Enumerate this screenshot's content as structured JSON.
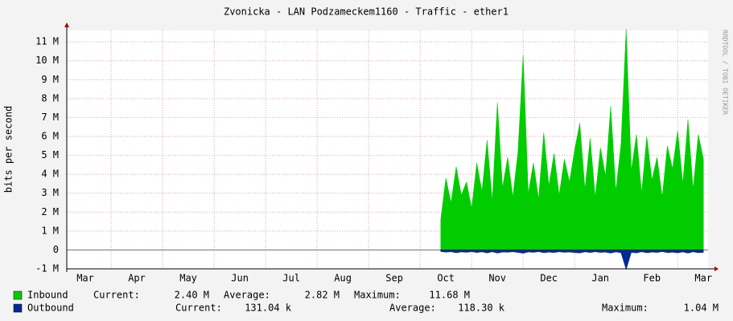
{
  "chart_data": {
    "type": "area",
    "title": "Zvonicka - LAN Podzameckem1160 - Traffic - ether1",
    "y_label": "bits per second",
    "side_label": "RRDTOOL / TOBI OETIKER",
    "categories": [
      "Mar",
      "Apr",
      "May",
      "Jun",
      "Jul",
      "Aug",
      "Sep",
      "Oct",
      "Nov",
      "Dec",
      "Jan",
      "Feb",
      "Mar"
    ],
    "xlim": [
      0.14,
      12.59
    ],
    "xgrid": [
      1,
      2,
      3,
      4,
      5,
      6,
      7,
      8,
      9,
      10,
      11,
      12
    ],
    "ylim": [
      -1000000,
      11600000
    ],
    "yticks": [
      {
        "value": -1000000,
        "label": "-1 M"
      },
      0,
      {
        "value": 1000000,
        "label": "1 M"
      },
      {
        "value": 2000000,
        "label": "2 M"
      },
      {
        "value": 3000000,
        "label": "3 M"
      },
      {
        "value": 4000000,
        "label": "4 M"
      },
      {
        "value": 5000000,
        "label": "5 M"
      },
      {
        "value": 6000000,
        "label": "6 M"
      },
      {
        "value": 7000000,
        "label": "7 M"
      },
      {
        "value": 8000000,
        "label": "8 M"
      },
      {
        "value": 9000000,
        "label": "9 M"
      },
      {
        "value": 10000000,
        "label": "10 M"
      },
      {
        "value": 11000000,
        "label": "11 M"
      }
    ],
    "grid": true,
    "x": [
      7.4,
      7.5,
      7.6,
      7.7,
      7.8,
      7.9,
      8.0,
      8.1,
      8.2,
      8.3,
      8.4,
      8.5,
      8.6,
      8.7,
      8.8,
      8.9,
      9.0,
      9.1,
      9.2,
      9.3,
      9.4,
      9.5,
      9.6,
      9.7,
      9.8,
      9.9,
      10.0,
      10.1,
      10.2,
      10.3,
      10.4,
      10.5,
      10.6,
      10.7,
      10.8,
      10.9,
      11.0,
      11.1,
      11.2,
      11.3,
      11.4,
      11.5,
      11.6,
      11.7,
      11.8,
      11.9,
      12.0,
      12.1,
      12.2,
      12.3,
      12.4,
      12.5
    ],
    "series": [
      {
        "name": "Inbound",
        "color": "#00cc00",
        "values": [
          1600000,
          3800000,
          2500000,
          4400000,
          2900000,
          3600000,
          2200000,
          4600000,
          3100000,
          5800000,
          2600000,
          7800000,
          3300000,
          4900000,
          2800000,
          5200000,
          10300000,
          3000000,
          4600000,
          2700000,
          6200000,
          3400000,
          5100000,
          2900000,
          4800000,
          3600000,
          5300000,
          6700000,
          3200000,
          5900000,
          2800000,
          5400000,
          3900000,
          7600000,
          3100000,
          5600000,
          11680000,
          4200000,
          6100000,
          3000000,
          6000000,
          3700000,
          4900000,
          2800000,
          5500000,
          4300000,
          6300000,
          3500000,
          6900000,
          3200000,
          6100000,
          4800000
        ]
      },
      {
        "name": "Outbound",
        "color": "#002a97",
        "values": [
          -90000,
          -120000,
          -100000,
          -150000,
          -110000,
          -130000,
          -95000,
          -140000,
          -105000,
          -160000,
          -100000,
          -170000,
          -115000,
          -125000,
          -100000,
          -135000,
          -180000,
          -110000,
          -130000,
          -95000,
          -150000,
          -120000,
          -140000,
          -100000,
          -130000,
          -115000,
          -145000,
          -160000,
          -105000,
          -140000,
          -100000,
          -135000,
          -120000,
          -170000,
          -110000,
          -150000,
          -1040000,
          -130000,
          -160000,
          -100000,
          -150000,
          -120000,
          -135000,
          -95000,
          -145000,
          -125000,
          -155000,
          -110000,
          -170000,
          -105000,
          -150000,
          -130000
        ]
      }
    ],
    "legend": [
      {
        "label": "Inbound",
        "current_label": "Current:",
        "current": "2.40 M",
        "average_label": "Average:",
        "average": "2.82 M",
        "maximum_label": "Maximum:",
        "maximum": "11.68 M"
      },
      {
        "label": "Outbound",
        "current_label": "Current:",
        "current": "131.04 k",
        "average_label": "Average:",
        "average": "118.30 k",
        "maximum_label": "Maximum:",
        "maximum": "1.04 M"
      }
    ]
  }
}
